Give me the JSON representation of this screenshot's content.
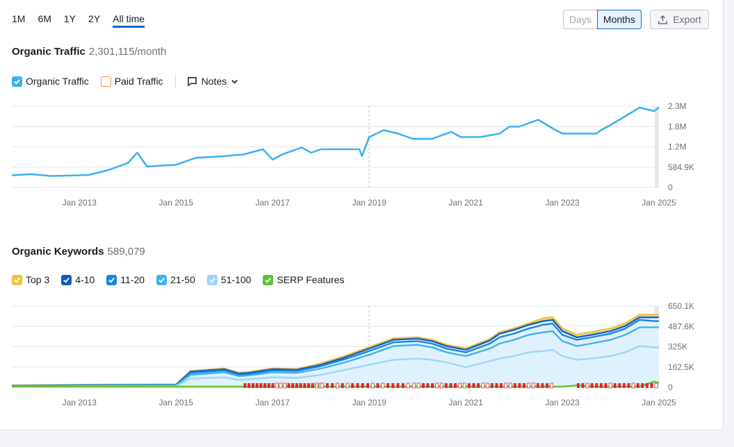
{
  "ranges": [
    "1M",
    "6M",
    "1Y",
    "2Y",
    "All time"
  ],
  "active_range": "All time",
  "granularity": {
    "days_label": "Days",
    "months_label": "Months"
  },
  "export_label": "Export",
  "traffic": {
    "title": "Organic Traffic",
    "value": "2,301,115/month",
    "legend": {
      "organic": "Organic Traffic",
      "paid": "Paid Traffic",
      "notes": "Notes"
    }
  },
  "keywords": {
    "title": "Organic Keywords",
    "value": "589,079",
    "legend": [
      "Top 3",
      "4-10",
      "11-20",
      "21-50",
      "51-100",
      "SERP Features"
    ]
  },
  "colors": {
    "organic": "#3ab0f0",
    "paid": "#ff8c43",
    "top3": "#f5c140",
    "k4_10": "#0e5ebd",
    "k11_20": "#1a84e0",
    "k21_50": "#3db2f2",
    "k51_100": "#9dd4fa",
    "serp": "#5ec239"
  },
  "chart_data": [
    {
      "type": "line",
      "title": "Organic Traffic",
      "series": [
        {
          "name": "Organic Traffic",
          "x": [
            2011.6,
            2012.0,
            2012.4,
            2012.8,
            2013.2,
            2013.6,
            2014.0,
            2014.2,
            2014.4,
            2014.6,
            2015.0,
            2015.4,
            2016.0,
            2016.4,
            2016.8,
            2017.0,
            2017.2,
            2017.6,
            2017.8,
            2018.0,
            2018.4,
            2018.8,
            2018.85,
            2019.0,
            2019.3,
            2019.6,
            2019.9,
            2020.3,
            2020.7,
            2020.9,
            2021.3,
            2021.7,
            2021.9,
            2022.1,
            2022.5,
            2022.8,
            2023.0,
            2023.5,
            2023.7,
            2023.8,
            2024.0,
            2024.3,
            2024.6,
            2024.9,
            2025.0
          ],
          "values": [
            350000,
            380000,
            330000,
            340000,
            360000,
            500000,
            700000,
            1000000,
            600000,
            620000,
            650000,
            850000,
            900000,
            950000,
            1100000,
            800000,
            950000,
            1150000,
            1000000,
            1100000,
            1100000,
            1100000,
            900000,
            1450000,
            1650000,
            1550000,
            1400000,
            1400000,
            1600000,
            1450000,
            1450000,
            1550000,
            1750000,
            1750000,
            1950000,
            1700000,
            1550000,
            1550000,
            1550000,
            1650000,
            1800000,
            2050000,
            2300000,
            2200000,
            2300000
          ]
        }
      ],
      "x_ticks": [
        "Jan 2013",
        "Jan 2015",
        "Jan 2017",
        "Jan 2019",
        "Jan 2021",
        "Jan 2023",
        "Jan 2025"
      ],
      "y_ticks": [
        "0",
        "584.9K",
        "1.2M",
        "1.8M",
        "2.3M"
      ],
      "ylim": [
        0,
        2340000
      ]
    },
    {
      "type": "area",
      "title": "Organic Keywords",
      "x": [
        2011.6,
        2013.0,
        2015.0,
        2015.3,
        2016.0,
        2016.3,
        2016.5,
        2017.0,
        2017.5,
        2018.0,
        2018.5,
        2019.0,
        2019.5,
        2020.0,
        2020.3,
        2020.6,
        2021.0,
        2021.5,
        2021.7,
        2022.0,
        2022.3,
        2022.6,
        2022.8,
        2023.0,
        2023.3,
        2023.6,
        2024.0,
        2024.3,
        2024.6,
        2024.9,
        2025.0
      ],
      "series": [
        {
          "name": "51-100",
          "values": [
            5000,
            8000,
            10000,
            70000,
            80000,
            60000,
            65000,
            80000,
            75000,
            100000,
            140000,
            180000,
            220000,
            230000,
            220000,
            200000,
            160000,
            210000,
            230000,
            250000,
            280000,
            290000,
            300000,
            250000,
            220000,
            230000,
            250000,
            280000,
            330000,
            320000,
            320000
          ]
        },
        {
          "name": "21-50",
          "values": [
            8000,
            12000,
            15000,
            100000,
            120000,
            90000,
            95000,
            120000,
            115000,
            150000,
            200000,
            260000,
            330000,
            340000,
            320000,
            280000,
            250000,
            310000,
            350000,
            380000,
            420000,
            440000,
            450000,
            370000,
            330000,
            350000,
            380000,
            420000,
            480000,
            480000,
            480000
          ]
        },
        {
          "name": "11-20",
          "values": [
            10000,
            15000,
            18000,
            115000,
            135000,
            100000,
            105000,
            135000,
            130000,
            170000,
            225000,
            290000,
            360000,
            370000,
            350000,
            310000,
            280000,
            350000,
            400000,
            430000,
            470000,
            500000,
            510000,
            420000,
            380000,
            400000,
            430000,
            470000,
            540000,
            530000,
            530000
          ]
        },
        {
          "name": "4-10",
          "values": [
            12000,
            17000,
            20000,
            125000,
            145000,
            110000,
            115000,
            145000,
            140000,
            180000,
            240000,
            310000,
            380000,
            390000,
            370000,
            330000,
            300000,
            375000,
            430000,
            460000,
            500000,
            530000,
            540000,
            450000,
            400000,
            420000,
            450000,
            490000,
            560000,
            560000,
            560000
          ]
        },
        {
          "name": "Top 3",
          "values": [
            14000,
            19000,
            22000,
            130000,
            150000,
            115000,
            120000,
            150000,
            145000,
            190000,
            250000,
            320000,
            390000,
            400000,
            380000,
            340000,
            310000,
            385000,
            440000,
            470000,
            510000,
            550000,
            560000,
            470000,
            420000,
            440000,
            470000,
            510000,
            580000,
            580000,
            580000
          ]
        },
        {
          "name": "SERP Features",
          "values": [
            0,
            0,
            0,
            0,
            0,
            0,
            0,
            0,
            0,
            0,
            0,
            0,
            0,
            0,
            0,
            0,
            0,
            0,
            0,
            0,
            0,
            0,
            0,
            0,
            10000,
            0,
            0,
            0,
            0,
            40000,
            30000
          ]
        }
      ],
      "x_ticks": [
        "Jan 2013",
        "Jan 2015",
        "Jan 2017",
        "Jan 2019",
        "Jan 2021",
        "Jan 2023",
        "Jan 2025"
      ],
      "y_ticks": [
        "0",
        "162.5K",
        "325K",
        "487.6K",
        "650.1K"
      ],
      "ylim": [
        0,
        650100
      ]
    }
  ]
}
